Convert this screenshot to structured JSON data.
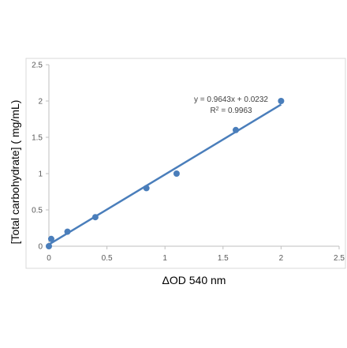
{
  "chart_data": {
    "type": "scatter",
    "xlabel": "ΔOD 540 nm",
    "ylabel": "[Total carbohydrate] ( mg/mL)",
    "xlim": [
      0,
      2.5
    ],
    "ylim": [
      0,
      2.5
    ],
    "x_ticks": [
      "0",
      "0.5",
      "1",
      "1.5",
      "2",
      "2.5"
    ],
    "y_ticks": [
      "0",
      "0.5",
      "1",
      "1.5",
      "2",
      "2.5"
    ],
    "grid": false,
    "legend": "none",
    "series": [
      {
        "points": [
          {
            "x": 0.0,
            "y": 0.0
          },
          {
            "x": 0.02,
            "y": 0.1
          },
          {
            "x": 0.16,
            "y": 0.2
          },
          {
            "x": 0.4,
            "y": 0.4
          },
          {
            "x": 0.84,
            "y": 0.8
          },
          {
            "x": 1.1,
            "y": 1.0
          },
          {
            "x": 1.61,
            "y": 1.6
          },
          {
            "x": 2.0,
            "y": 2.0
          }
        ]
      }
    ],
    "trendline": {
      "type": "linear",
      "slope": 0.9643,
      "intercept": 0.0232,
      "x_range": [
        0,
        2.0
      ],
      "equation": "y = 0.9643x + 0.0232",
      "r_squared_label": "R",
      "r_squared_sup": "2",
      "r_squared_value": " = 0.9963"
    },
    "colors": {
      "marker": "#4a7ebb",
      "trendline": "#4a7ebb",
      "axis": "#bfbfbf",
      "border": "#d9d9d9"
    }
  }
}
